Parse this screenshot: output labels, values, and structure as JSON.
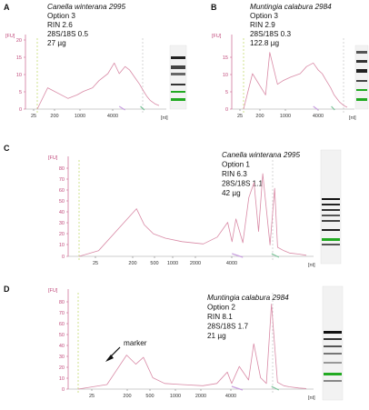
{
  "chart_data": [
    {
      "panel": "A",
      "type": "line",
      "title": "Canella winterana 2995",
      "info": [
        "Option 3",
        "RIN 2.6",
        "28S/18S 0.5",
        "27 µg"
      ],
      "ylabel": "[FU]",
      "xlabel": "[nt]",
      "yticks": [
        "0",
        "5",
        "10",
        "15",
        "20"
      ],
      "xticks": [
        "25",
        "200",
        "1000",
        "4000"
      ],
      "ylim": [
        0,
        20
      ],
      "x": [
        25,
        40,
        100,
        150,
        200,
        300,
        400,
        600,
        800,
        1000,
        1300,
        1600,
        2000,
        2500,
        3000,
        3500,
        4000,
        5000,
        6000
      ],
      "y": [
        0,
        6,
        3,
        4,
        5,
        6,
        8,
        10,
        13,
        10,
        12,
        11,
        9,
        7,
        5,
        3.5,
        2.5,
        1.5,
        1
      ]
    },
    {
      "panel": "B",
      "type": "line",
      "title": "Muntingia calabura 2984",
      "info": [
        "Option 3",
        "RIN 2.9",
        "28S/18S 0.3",
        "122.8 µg"
      ],
      "ylabel": "[FU]",
      "xlabel": "[nt]",
      "yticks": [
        "0",
        "5",
        "10",
        "15"
      ],
      "xticks": [
        "25",
        "200",
        "1000",
        "4000"
      ],
      "ylim": [
        0,
        20
      ],
      "x": [
        25,
        40,
        80,
        100,
        150,
        200,
        300,
        500,
        700,
        1000,
        1300,
        1600,
        2000,
        2500,
        3000,
        4000,
        5000,
        6000
      ],
      "y": [
        0,
        10,
        4,
        16,
        7,
        8,
        9,
        10,
        12,
        13,
        11,
        10,
        8,
        6,
        4,
        2,
        1,
        0.5
      ]
    },
    {
      "panel": "C",
      "type": "line",
      "title": "Canella winterana 2995",
      "info": [
        "Option 1",
        "RIN 6.3",
        "28S/18S 1.1",
        "42 µg"
      ],
      "ylabel": "[FU]",
      "xlabel": "[nt]",
      "yticks": [
        "0",
        "10",
        "20",
        "30",
        "40",
        "50",
        "60",
        "70",
        "80"
      ],
      "xticks": [
        "25",
        "200",
        "500",
        "1000",
        "2000",
        "4000"
      ],
      "ylim": [
        0,
        85
      ],
      "x": [
        25,
        40,
        100,
        120,
        150,
        200,
        300,
        500,
        700,
        900,
        1000,
        1100,
        1300,
        1500,
        1700,
        1900,
        2100,
        2500,
        2800,
        3000,
        3500,
        4000,
        5000,
        6000
      ],
      "y": [
        0,
        5,
        42,
        28,
        20,
        16,
        13,
        11,
        17,
        30,
        13,
        33,
        12,
        52,
        65,
        22,
        73,
        10,
        60,
        8,
        5,
        3,
        2,
        1
      ]
    },
    {
      "panel": "D",
      "type": "line",
      "title": "Muntingia calabura 2984",
      "info": [
        "Option 2",
        "RIN 8.1",
        "28S/18S 1.7",
        "21 µg"
      ],
      "annotation": "marker",
      "ylabel": "[FU]",
      "xlabel": "[nt]",
      "yticks": [
        "0",
        "10",
        "20",
        "30",
        "40",
        "50",
        "60",
        "70",
        "80"
      ],
      "xticks": [
        "25",
        "200",
        "500",
        "1000",
        "2000",
        "4000"
      ],
      "ylim": [
        0,
        85
      ],
      "x": [
        25,
        50,
        80,
        100,
        120,
        150,
        200,
        300,
        500,
        700,
        900,
        1000,
        1200,
        1500,
        1700,
        2000,
        2300,
        2600,
        3000,
        3500,
        4000,
        5000,
        6000
      ],
      "y": [
        0,
        4,
        30,
        22,
        28,
        10,
        5,
        4,
        3,
        5,
        15,
        5,
        20,
        8,
        40,
        10,
        5,
        75,
        6,
        3,
        2,
        1,
        0.5
      ]
    }
  ]
}
